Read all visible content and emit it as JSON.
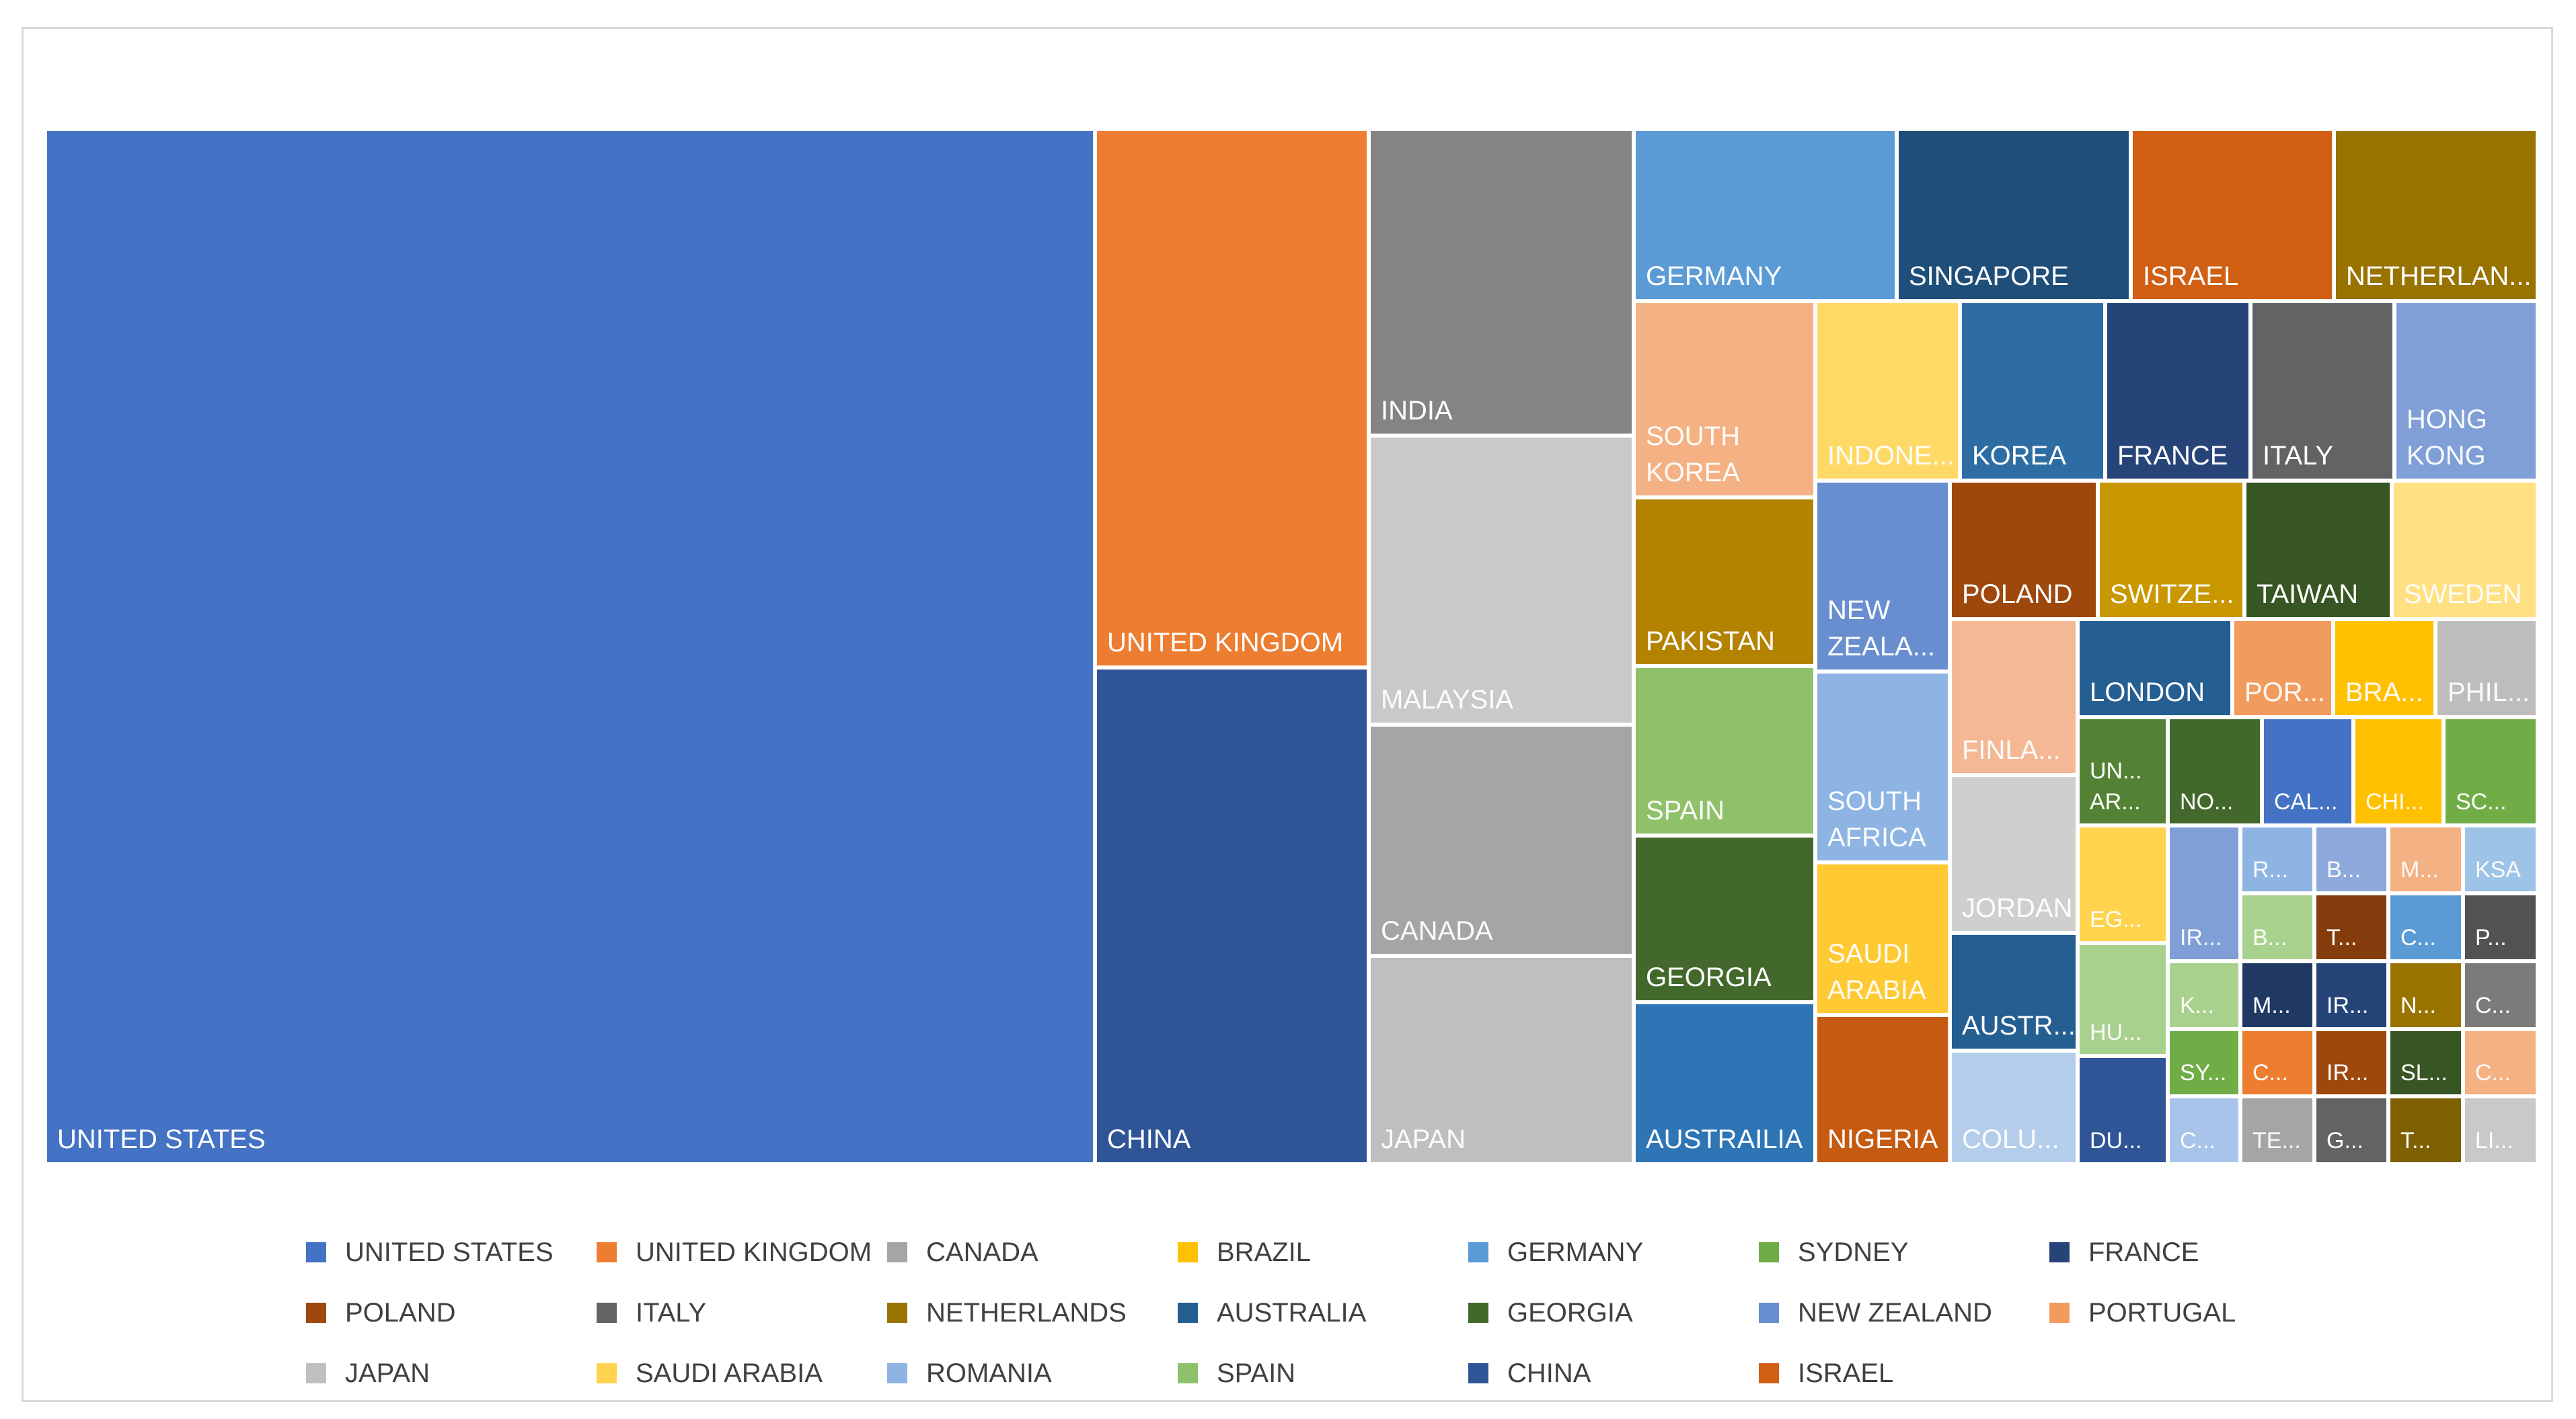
{
  "chart_data": {
    "type": "treemap",
    "title": "",
    "cells": [
      {
        "label": "UNITED STATES",
        "color": "#4472C4"
      },
      {
        "label": "UNITED KINGDOM",
        "color": "#ED7D31"
      },
      {
        "label": "CHINA",
        "color": "#2F5597"
      },
      {
        "label": "INDIA",
        "color": "#848484"
      },
      {
        "label": "MALAYSIA",
        "color": "#C9C9C9"
      },
      {
        "label": "CANADA",
        "color": "#A5A5A5"
      },
      {
        "label": "JAPAN",
        "color": "#BFBFBF"
      },
      {
        "label": "GERMANY",
        "color": "#5B9BD5"
      },
      {
        "label": "SINGAPORE",
        "color": "#1F4E79"
      },
      {
        "label": "ISRAEL",
        "color": "#D05F13"
      },
      {
        "label": "NETHERLAN...",
        "color": "#997300"
      },
      {
        "label": "SOUTH KOREA",
        "color": "#F4B183"
      },
      {
        "label": "INDONE...",
        "color": "#FFD966"
      },
      {
        "label": "KOREA",
        "color": "#2E6DA4"
      },
      {
        "label": "FRANCE",
        "color": "#264478"
      },
      {
        "label": "ITALY",
        "color": "#636363"
      },
      {
        "label": "HONG KONG",
        "color": "#7F9FD6"
      },
      {
        "label": "PAKISTAN",
        "color": "#B38300"
      },
      {
        "label": "NEW ZEALA...",
        "color": "#698ED0"
      },
      {
        "label": "POLAND",
        "color": "#9E480E"
      },
      {
        "label": "SWITZE...",
        "color": "#C99700"
      },
      {
        "label": "TAIWAN",
        "color": "#375623"
      },
      {
        "label": "SWEDEN",
        "color": "#FFE083"
      },
      {
        "label": "SPAIN",
        "color": "#8FC06A"
      },
      {
        "label": "SOUTH AFRICA",
        "color": "#8EB4E3"
      },
      {
        "label": "FINLA...",
        "color": "#F4B894"
      },
      {
        "label": "LONDON",
        "color": "#255E91"
      },
      {
        "label": "POR...",
        "color": "#F19C5E"
      },
      {
        "label": "BRA...",
        "color": "#FFC000"
      },
      {
        "label": "PHIL...",
        "color": "#BDBDBD"
      },
      {
        "label": "UN... AR...",
        "color": "#548235"
      },
      {
        "label": "NO...",
        "color": "#43682B"
      },
      {
        "label": "CAL...",
        "color": "#4472C4"
      },
      {
        "label": "CHI...",
        "color": "#FFC000"
      },
      {
        "label": "SC...",
        "color": "#70AD47"
      },
      {
        "label": "GEORGIA",
        "color": "#43682B"
      },
      {
        "label": "SAUDI ARABIA",
        "color": "#FFC933"
      },
      {
        "label": "JORDAN",
        "color": "#CFCFCF"
      },
      {
        "label": "EG...",
        "color": "#FFD34D"
      },
      {
        "label": "IR...",
        "color": "#7F9FD6"
      },
      {
        "label": "R...",
        "color": "#8EB4E3"
      },
      {
        "label": "B...",
        "color": "#8EA9DB"
      },
      {
        "label": "M...",
        "color": "#F4B183"
      },
      {
        "label": "KSA",
        "color": "#9DC3E6"
      },
      {
        "label": "B...",
        "color": "#A9D18E"
      },
      {
        "label": "T...",
        "color": "#843C0C"
      },
      {
        "label": "C...",
        "color": "#5B9BD5"
      },
      {
        "label": "P...",
        "color": "#525252"
      },
      {
        "label": "AUSTR...",
        "color": "#255E91"
      },
      {
        "label": "HU...",
        "color": "#A9D18E"
      },
      {
        "label": "K...",
        "color": "#A9D18E"
      },
      {
        "label": "M...",
        "color": "#203864"
      },
      {
        "label": "IR...",
        "color": "#264478"
      },
      {
        "label": "N...",
        "color": "#997300"
      },
      {
        "label": "C...",
        "color": "#7B7B7B"
      },
      {
        "label": "AUSTRAILIA",
        "color": "#2E75B6"
      },
      {
        "label": "NIGERIA",
        "color": "#C55A11"
      },
      {
        "label": "COLU...",
        "color": "#B4CDEB"
      },
      {
        "label": "DU...",
        "color": "#2F5597"
      },
      {
        "label": "SY...",
        "color": "#70AD47"
      },
      {
        "label": "C...",
        "color": "#ED7D31"
      },
      {
        "label": "IR...",
        "color": "#9E480E"
      },
      {
        "label": "SL...",
        "color": "#375623"
      },
      {
        "label": "C...",
        "color": "#F4B183"
      },
      {
        "label": "C...",
        "color": "#A9C4EB"
      },
      {
        "label": "TE...",
        "color": "#A5A5A5"
      },
      {
        "label": "G...",
        "color": "#636363"
      },
      {
        "label": "T...",
        "color": "#7F6000"
      },
      {
        "label": "LI...",
        "color": "#C9C9C9"
      }
    ],
    "legend": [
      {
        "label": "UNITED STATES",
        "color": "#4472C4"
      },
      {
        "label": "UNITED KINGDOM",
        "color": "#ED7D31"
      },
      {
        "label": "CANADA",
        "color": "#A5A5A5"
      },
      {
        "label": "BRAZIL",
        "color": "#FFC000"
      },
      {
        "label": "GERMANY",
        "color": "#5B9BD5"
      },
      {
        "label": "SYDNEY",
        "color": "#70AD47"
      },
      {
        "label": "FRANCE",
        "color": "#264478"
      },
      {
        "label": "POLAND",
        "color": "#9E480E"
      },
      {
        "label": "ITALY",
        "color": "#636363"
      },
      {
        "label": "NETHERLANDS",
        "color": "#997300"
      },
      {
        "label": "AUSTRALIA",
        "color": "#255E91"
      },
      {
        "label": "GEORGIA",
        "color": "#43682B"
      },
      {
        "label": "NEW ZEALAND",
        "color": "#698ED0"
      },
      {
        "label": "PORTUGAL",
        "color": "#F19C5E"
      },
      {
        "label": "JAPAN",
        "color": "#BFBFBF"
      },
      {
        "label": "SAUDI ARABIA",
        "color": "#FFD34D"
      },
      {
        "label": "ROMANIA",
        "color": "#8EB4E3"
      },
      {
        "label": "SPAIN",
        "color": "#8FC06A"
      },
      {
        "label": "CHINA",
        "color": "#2F5597"
      },
      {
        "label": "ISRAEL",
        "color": "#D05F13"
      }
    ]
  }
}
